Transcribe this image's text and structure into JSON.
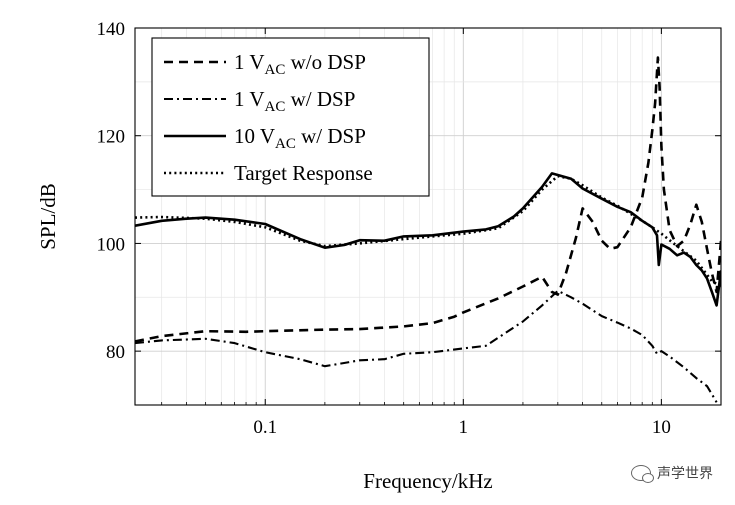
{
  "chart_data": {
    "type": "line",
    "xscale": "log",
    "xlim": [
      0.022,
      20
    ],
    "ylim": [
      70,
      140
    ],
    "xlabel": "Frequency/kHz",
    "ylabel": "SPL/dB",
    "xticks": [
      {
        "value": 0.1,
        "label": "0.1"
      },
      {
        "value": 1,
        "label": "1"
      },
      {
        "value": 10,
        "label": "10"
      }
    ],
    "yticks": [
      80,
      100,
      120,
      140
    ],
    "grid": "on",
    "legend_position": "top-left",
    "series": [
      {
        "name": "1 V_AC w/o DSP",
        "legend_main": "1 V",
        "legend_sub": "AC",
        "legend_rest": " w/o DSP",
        "style": "dashed",
        "x": [
          0.022,
          0.03,
          0.05,
          0.08,
          0.1,
          0.2,
          0.3,
          0.5,
          0.7,
          0.9,
          1.0,
          1.5,
          2.0,
          2.5,
          2.8,
          3.0,
          3.3,
          3.7,
          4.0,
          4.5,
          5.0,
          5.5,
          6.0,
          7.0,
          8.0,
          8.6,
          9.0,
          9.3,
          9.6,
          9.8,
          10.0,
          10.3,
          11.0,
          12.0,
          13.0,
          14.0,
          15.0,
          16.0,
          17.0,
          18.0,
          19.0,
          20.0
        ],
        "y": [
          81.8,
          82.8,
          83.7,
          83.6,
          83.7,
          84.0,
          84.1,
          84.6,
          85.2,
          86.4,
          87.2,
          89.8,
          92.0,
          93.8,
          91.0,
          90.5,
          94.5,
          101.0,
          106.5,
          104.0,
          100.5,
          99.0,
          99.3,
          103.0,
          108.5,
          115.0,
          121.0,
          126.0,
          134.5,
          129.0,
          118.0,
          110.0,
          102.5,
          99.5,
          100.5,
          103.5,
          107.2,
          104.0,
          99.0,
          94.5,
          91.0,
          100.5
        ]
      },
      {
        "name": "1 V_AC w/ DSP",
        "legend_main": "1 V",
        "legend_sub": "AC",
        "legend_rest": " w/ DSP",
        "style": "dashdot",
        "x": [
          0.022,
          0.03,
          0.05,
          0.07,
          0.1,
          0.15,
          0.2,
          0.25,
          0.3,
          0.4,
          0.5,
          0.7,
          1.0,
          1.3,
          1.5,
          2.0,
          2.5,
          3.0,
          3.5,
          4.0,
          5.0,
          6.0,
          7.0,
          8.0,
          9.0,
          9.5,
          10.0,
          11.0,
          13.0,
          15.0,
          17.0,
          18.0,
          19.0
        ],
        "y": [
          81.5,
          82.0,
          82.3,
          81.5,
          79.8,
          78.5,
          77.2,
          77.8,
          78.3,
          78.5,
          79.5,
          79.8,
          80.5,
          81.0,
          82.5,
          85.5,
          88.5,
          91.2,
          90.0,
          88.8,
          86.5,
          85.3,
          84.2,
          83.0,
          81.0,
          79.5,
          80.0,
          79.0,
          77.0,
          75.0,
          73.5,
          72.0,
          70.5
        ]
      },
      {
        "name": "10 V_AC w/ DSP",
        "legend_main": "10 V",
        "legend_sub": "AC",
        "legend_rest": " w/ DSP",
        "style": "solid",
        "x": [
          0.022,
          0.03,
          0.04,
          0.05,
          0.07,
          0.1,
          0.15,
          0.2,
          0.25,
          0.3,
          0.4,
          0.5,
          0.7,
          1.0,
          1.3,
          1.5,
          1.8,
          2.0,
          2.5,
          2.8,
          3.0,
          3.5,
          4.0,
          5.0,
          6.0,
          7.0,
          8.0,
          9.0,
          9.5,
          9.7,
          10.0,
          11.0,
          12.0,
          13.0,
          14.0,
          15.0,
          16.0,
          17.0,
          18.0,
          19.0,
          20.0
        ],
        "y": [
          103.3,
          104.2,
          104.6,
          104.8,
          104.4,
          103.6,
          100.8,
          99.2,
          99.7,
          100.6,
          100.5,
          101.3,
          101.5,
          102.2,
          102.6,
          103.2,
          105.0,
          106.5,
          110.5,
          113.0,
          112.7,
          112.0,
          110.2,
          108.3,
          106.8,
          105.8,
          104.2,
          103.0,
          101.5,
          96.0,
          99.8,
          99.0,
          97.8,
          98.3,
          97.5,
          96.0,
          95.0,
          93.5,
          91.0,
          88.5,
          95.0
        ]
      },
      {
        "name": "Target Response",
        "legend_main": "Target Response",
        "legend_sub": "",
        "legend_rest": "",
        "style": "dotted",
        "x": [
          0.022,
          0.03,
          0.05,
          0.07,
          0.1,
          0.15,
          0.2,
          0.3,
          0.5,
          0.7,
          1.0,
          1.5,
          2.0,
          2.5,
          3.0,
          3.5,
          4.0,
          5.0,
          6.0,
          7.0,
          8.0,
          9.0,
          10.0,
          12.0,
          15.0,
          18.0,
          20.0
        ],
        "y": [
          104.8,
          104.9,
          104.6,
          104.0,
          103.0,
          100.5,
          99.5,
          100.0,
          100.8,
          101.3,
          101.8,
          102.8,
          106.0,
          110.0,
          112.5,
          112.0,
          110.8,
          108.5,
          107.0,
          105.5,
          104.2,
          103.0,
          101.8,
          99.5,
          96.8,
          93.0,
          92.0
        ]
      }
    ]
  },
  "watermark": {
    "text": "声学世界",
    "icon": "wechat-icon"
  }
}
